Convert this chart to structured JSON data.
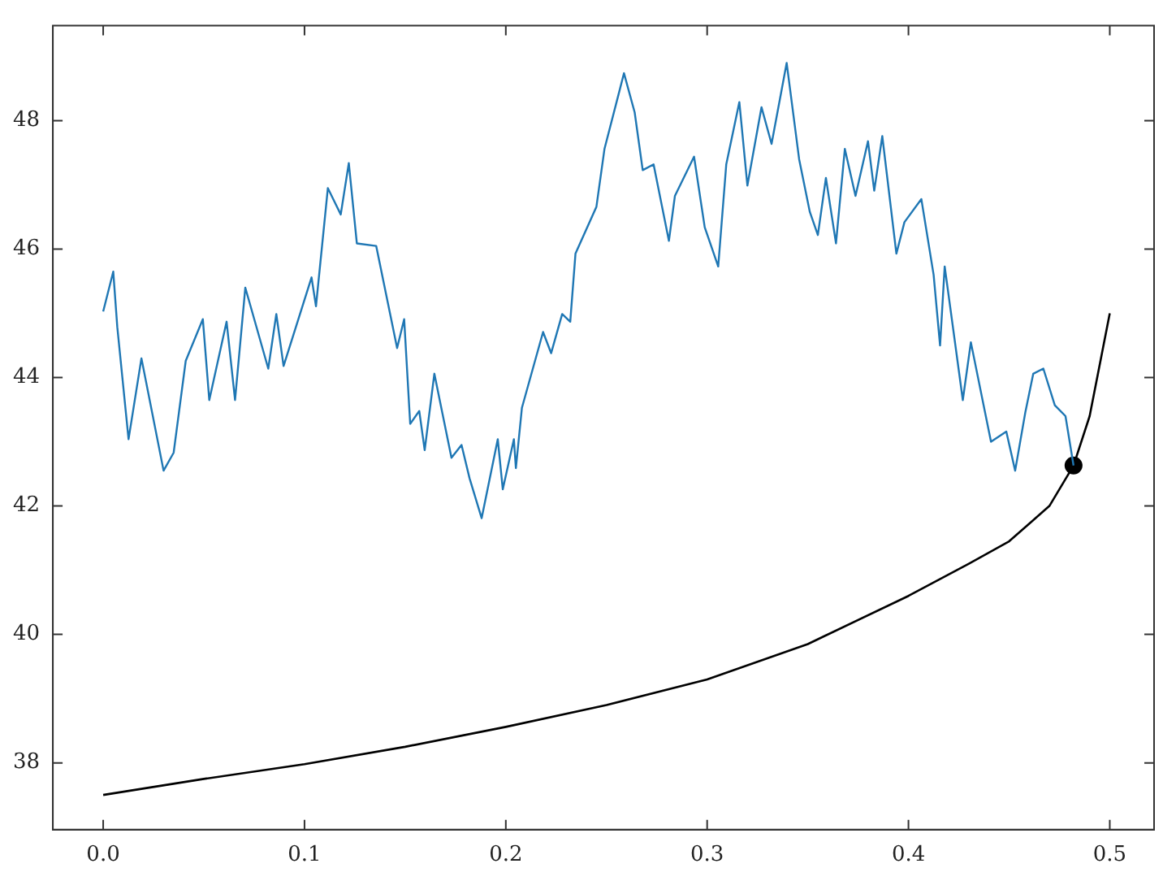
{
  "chart_data": {
    "type": "line",
    "xlim": [
      -0.025,
      0.522
    ],
    "ylim": [
      36.96,
      49.48
    ],
    "xticks": [
      {
        "value": 0,
        "label": "0.0"
      },
      {
        "value": 0.1,
        "label": "0.1"
      },
      {
        "value": 0.2,
        "label": "0.2"
      },
      {
        "value": 0.3,
        "label": "0.3"
      },
      {
        "value": 0.4,
        "label": "0.4"
      },
      {
        "value": 0.5,
        "label": "0.5"
      }
    ],
    "yticks": [
      38,
      40,
      42,
      44,
      46,
      48
    ],
    "grid": false,
    "legend": false,
    "series": [
      {
        "color": "#1f77b4",
        "marker": "none",
        "x": [
          0,
          0.005,
          0.007,
          0.0126,
          0.019,
          0.03,
          0.035,
          0.041,
          0.0495,
          0.0527,
          0.0613,
          0.0655,
          0.0706,
          0.082,
          0.086,
          0.0896,
          0.1035,
          0.1057,
          0.1116,
          0.118,
          0.122,
          0.126,
          0.1356,
          0.146,
          0.1495,
          0.1525,
          0.157,
          0.1597,
          0.1645,
          0.173,
          0.178,
          0.182,
          0.188,
          0.196,
          0.1985,
          0.204,
          0.205,
          0.208,
          0.2185,
          0.2225,
          0.228,
          0.232,
          0.2346,
          0.245,
          0.249,
          0.2587,
          0.264,
          0.268,
          0.2734,
          0.281,
          0.284,
          0.2935,
          0.2988,
          0.3055,
          0.3095,
          0.316,
          0.32,
          0.327,
          0.332,
          0.3395,
          0.3457,
          0.351,
          0.355,
          0.359,
          0.364,
          0.3684,
          0.3737,
          0.3799,
          0.383,
          0.387,
          0.394,
          0.398,
          0.4064,
          0.4125,
          0.4157,
          0.418,
          0.427,
          0.431,
          0.441,
          0.4486,
          0.453,
          0.458,
          0.462,
          0.467,
          0.4727,
          0.478,
          0.482
        ],
        "values": [
          45.03,
          45.65,
          44.79,
          43.04,
          44.3,
          42.55,
          42.83,
          44.26,
          44.91,
          43.65,
          44.87,
          43.65,
          45.4,
          44.14,
          44.99,
          44.18,
          45.56,
          45.11,
          46.95,
          46.54,
          47.34,
          46.09,
          46.05,
          44.46,
          44.91,
          43.28,
          43.48,
          42.87,
          44.06,
          42.75,
          42.95,
          42.43,
          41.81,
          43.04,
          42.26,
          43.04,
          42.59,
          43.53,
          44.71,
          44.38,
          44.99,
          44.87,
          45.93,
          46.66,
          47.56,
          48.74,
          48.13,
          47.23,
          47.32,
          46.13,
          46.83,
          47.44,
          46.34,
          45.73,
          47.32,
          48.29,
          46.99,
          48.21,
          47.64,
          48.9,
          47.4,
          46.58,
          46.22,
          47.11,
          46.09,
          47.56,
          46.83,
          47.68,
          46.91,
          47.76,
          45.93,
          46.42,
          46.78,
          45.6,
          44.5,
          45.73,
          43.65,
          44.55,
          43.0,
          43.16,
          42.55,
          43.45,
          44.06,
          44.14,
          43.57,
          43.4,
          42.63
        ]
      },
      {
        "color": "#000000",
        "marker": "none",
        "x": [
          0,
          0.05,
          0.1,
          0.15,
          0.2,
          0.25,
          0.3,
          0.35,
          0.4,
          0.43,
          0.45,
          0.47,
          0.482,
          0.49,
          0.5
        ],
        "values": [
          37.5,
          37.75,
          37.98,
          38.25,
          38.56,
          38.9,
          39.3,
          39.85,
          40.6,
          41.1,
          41.45,
          42.0,
          42.63,
          43.4,
          45.0
        ]
      },
      {
        "type": "scatter",
        "color": "#000000",
        "marker": "circle",
        "x": [
          0.482
        ],
        "values": [
          42.63
        ]
      }
    ]
  }
}
